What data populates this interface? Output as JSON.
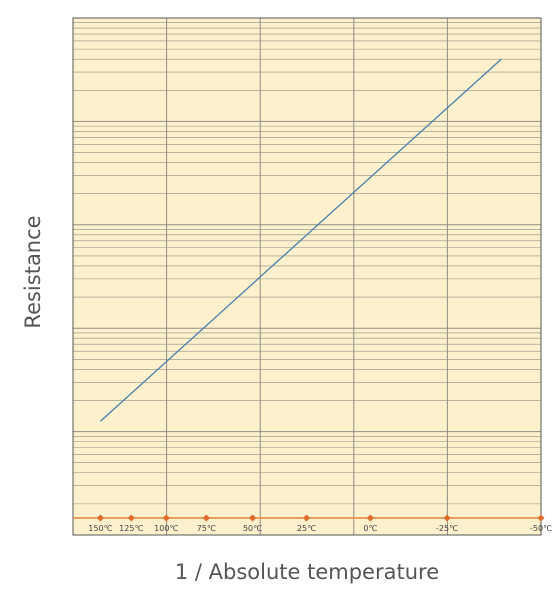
{
  "chart_data": {
    "type": "line",
    "xlabel": "1 / Absolute temperature",
    "ylabel": "Resistance",
    "x_scale": "reciprocal absolute temperature",
    "y_scale": "log",
    "x_ticks_celsius": [
      150,
      125,
      100,
      75,
      50,
      25,
      0,
      -25,
      -50
    ],
    "x_tick_labels": [
      "150℃",
      "125℃",
      "100℃",
      "75℃",
      "50℃",
      "25℃",
      "0℃",
      "-25℃",
      "-50℃"
    ],
    "xlim_celsius": [
      175,
      -50
    ],
    "ylim_decades": [
      0,
      5
    ],
    "series": [
      {
        "x_celsius": [
          150,
          -40
        ],
        "y_decades": [
          1.1,
          4.6
        ]
      }
    ],
    "grid": true,
    "colors": {
      "background": "#fdf0cc",
      "grid": "#8f8f84",
      "line": "#4a7fae",
      "axis_marker": "#e0843a",
      "marker_dot": "#e06a2a"
    }
  }
}
